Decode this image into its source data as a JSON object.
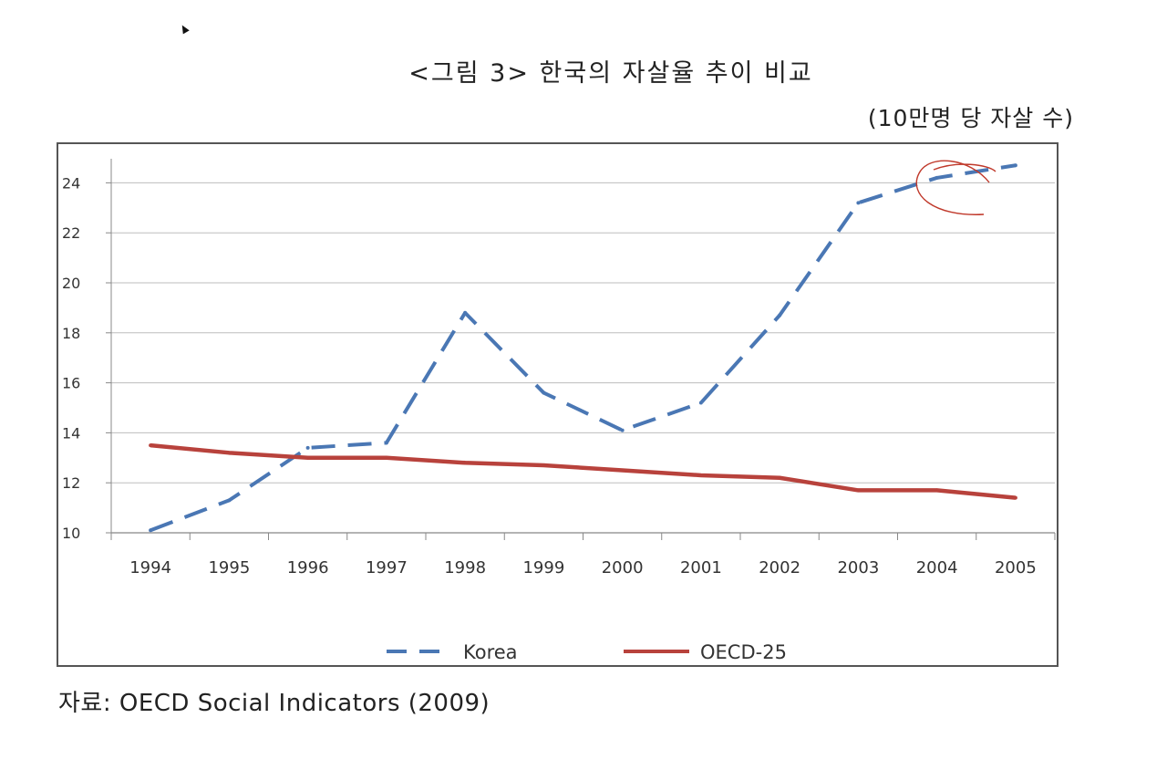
{
  "header": {
    "title": "<그림 3> 한국의 자살율 추이 비교",
    "unit": "(10만명 당 자살 수)"
  },
  "footer": {
    "source": "자료: OECD Social Indicators (2009)"
  },
  "chart_data": {
    "type": "line",
    "title": "",
    "xlabel": "",
    "ylabel": "",
    "x": [
      "1994",
      "1995",
      "1996",
      "1997",
      "1998",
      "1999",
      "2000",
      "2001",
      "2002",
      "2003",
      "2004",
      "2005"
    ],
    "yticks": [
      10,
      12,
      14,
      16,
      18,
      20,
      22,
      24
    ],
    "ylim": [
      10,
      25
    ],
    "grid": true,
    "legend_position": "bottom",
    "series": [
      {
        "name": "Korea",
        "style": "dashed",
        "color": "#4a77b4",
        "values": [
          10.1,
          11.3,
          13.4,
          13.6,
          18.8,
          15.6,
          14.1,
          15.2,
          18.7,
          23.2,
          24.2,
          24.7
        ]
      },
      {
        "name": "OECD-25",
        "style": "solid",
        "color": "#b8423c",
        "values": [
          13.5,
          13.2,
          13.0,
          13.0,
          12.8,
          12.7,
          12.5,
          12.3,
          12.2,
          11.7,
          11.7,
          11.4
        ]
      }
    ]
  }
}
